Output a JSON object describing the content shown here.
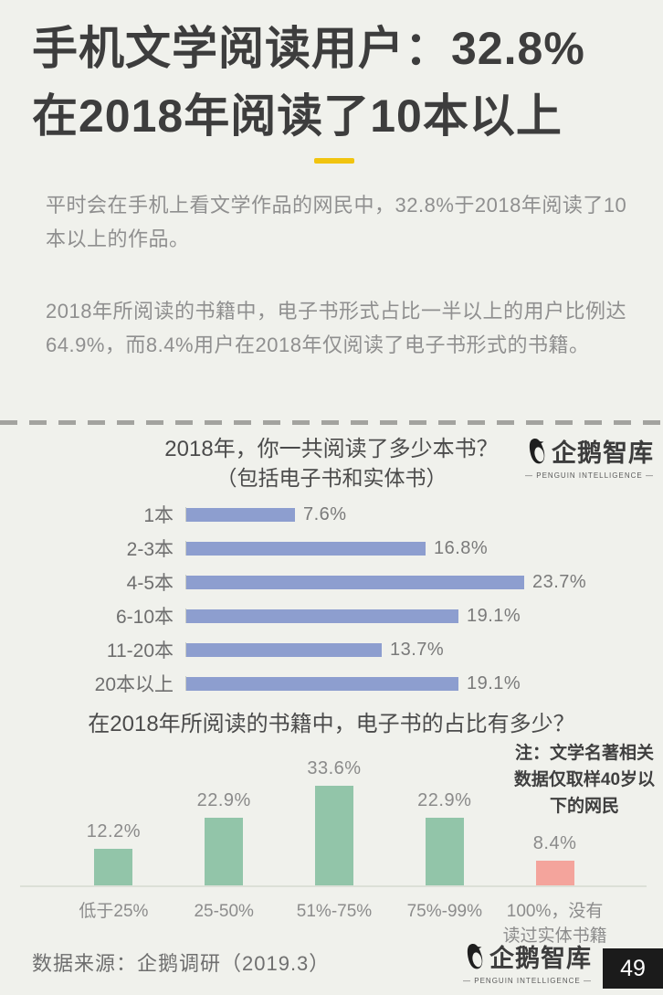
{
  "page": {
    "title_line1": "手机文学阅读用户：32.8%",
    "title_line2": "在2018年阅读了10本以上",
    "paragraph1": "平时会在手机上看文学作品的网民中，32.8%于2018年阅读了10本以上的作品。",
    "paragraph2": "2018年所阅读的书籍中，电子书形式占比一半以上的用户比例达64.9%，而8.4%用户在2018年仅阅读了电子书形式的书籍。",
    "note": "注：文学名著相关数据仅取样40岁以下的网民",
    "source": "数据来源：企鹅调研（2019.3）",
    "page_number": "49"
  },
  "logo": {
    "name": "企鹅智库",
    "caption": "— PENGUIN INTELLIGENCE —",
    "icon": "penguin-icon"
  },
  "colors": {
    "background": "#f0f1ec",
    "accent_yellow": "#f1c40f",
    "bar_blue": "#8d9ecf",
    "bar_green": "#92c5a9",
    "bar_pink": "#f4a49c",
    "badge_bg": "#1b1b1b",
    "badge_text": "#ffffff"
  },
  "chart_data": [
    {
      "type": "bar",
      "orientation": "horizontal",
      "title": "2018年，你一共阅读了多少本书？",
      "subtitle": "（包括电子书和实体书）",
      "categories": [
        "1本",
        "2-3本",
        "4-5本",
        "6-10本",
        "11-20本",
        "20本以上"
      ],
      "values": [
        7.6,
        16.8,
        23.7,
        19.1,
        13.7,
        19.1
      ],
      "unit": "%",
      "xlim": [
        0,
        25
      ],
      "bar_color": "#8d9ecf",
      "grid": false,
      "legend": false
    },
    {
      "type": "bar",
      "orientation": "vertical",
      "title": "在2018年所阅读的书籍中，电子书的占比有多少？",
      "categories": [
        "低于25%",
        "25-50%",
        "51%-75%",
        "75%-99%",
        "100%，没有读过实体书籍"
      ],
      "values": [
        12.2,
        22.9,
        33.6,
        22.9,
        8.4
      ],
      "unit": "%",
      "ylim": [
        0,
        40
      ],
      "bar_colors": [
        "#92c5a9",
        "#92c5a9",
        "#92c5a9",
        "#92c5a9",
        "#f4a49c"
      ],
      "grid": false,
      "legend": false
    }
  ]
}
